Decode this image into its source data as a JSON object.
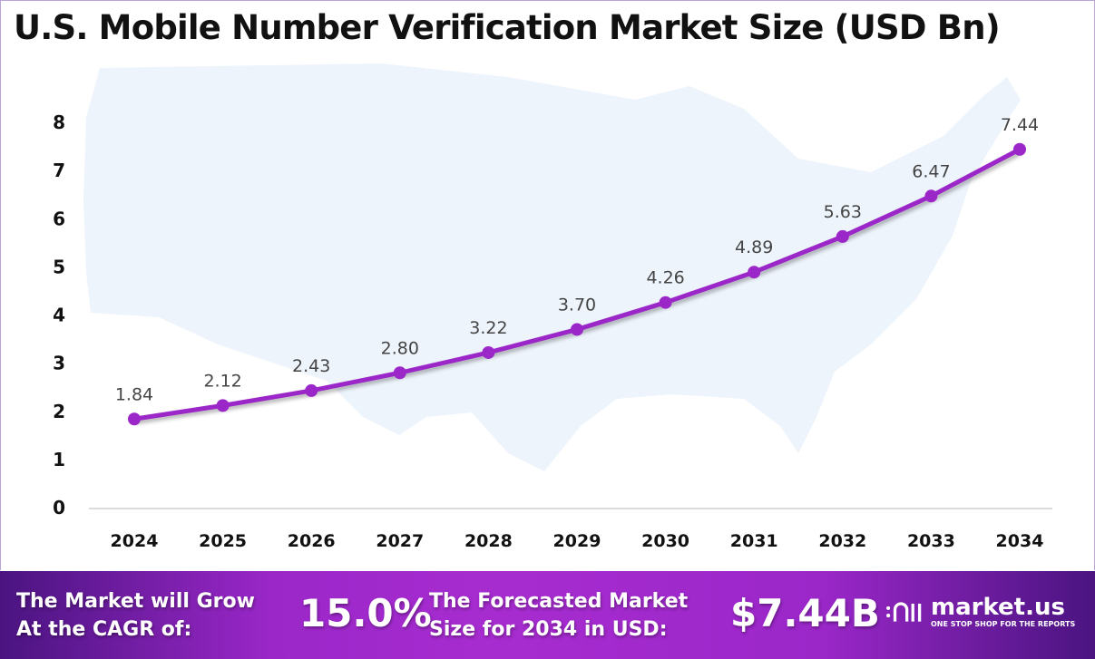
{
  "chart_data": {
    "type": "line",
    "title": "U.S. Mobile Number Verification Market Size (USD Bn)",
    "categories": [
      "2024",
      "2025",
      "2026",
      "2027",
      "2028",
      "2029",
      "2030",
      "2031",
      "2032",
      "2033",
      "2034"
    ],
    "values": [
      1.84,
      2.12,
      2.43,
      2.8,
      3.22,
      3.7,
      4.26,
      4.89,
      5.63,
      6.47,
      7.44
    ],
    "data_labels": [
      "1.84",
      "2.12",
      "2.43",
      "2.80",
      "3.22",
      "3.70",
      "4.26",
      "4.89",
      "5.63",
      "6.47",
      "7.44"
    ],
    "yticks": [
      0,
      1,
      2,
      3,
      4,
      5,
      6,
      7,
      8
    ],
    "ylim": [
      0,
      8
    ],
    "grid": false,
    "line_color": "#9b27c9",
    "background_map": "united-states-silhouette"
  },
  "banner": {
    "cagr_label_line1": "The Market will Grow",
    "cagr_label_line2": "At the CAGR of:",
    "cagr_value": "15.0%",
    "forecast_label_line1": "The Forecasted Market",
    "forecast_label_line2": "Size for 2034 in USD:",
    "forecast_value": "$7.44B",
    "logo_name": "market.us",
    "logo_tagline": "ONE STOP SHOP FOR THE REPORTS"
  }
}
